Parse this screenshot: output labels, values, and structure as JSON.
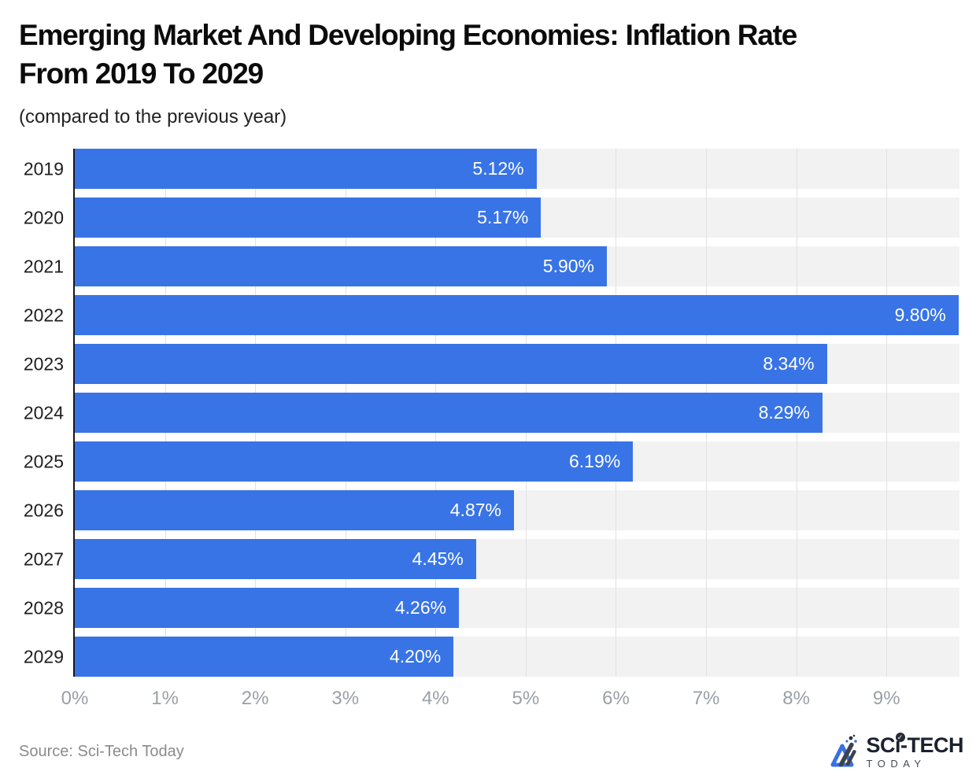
{
  "header": {
    "title_line1": "Emerging Market And Developing Economies: Inflation Rate",
    "title_line2": "From 2019 To 2029",
    "subtitle": "(compared to the previous year)"
  },
  "footer": {
    "source": "Source: Sci-Tech Today",
    "brand_top": "SCi-TECH",
    "brand_bottom": "TODAY"
  },
  "colors": {
    "bar": "#3874e6",
    "track": "#f2f2f2",
    "gridline": "#e1e1e1",
    "axis_line": "#17181a",
    "tick_label": "#9aa0a6",
    "year_label": "#1e1e1e",
    "value_label": "#ffffff",
    "brand_blue": "#3a70e2",
    "brand_dark": "#3c4350"
  },
  "chart_data": {
    "type": "bar",
    "orientation": "horizontal",
    "title": "Emerging Market And Developing Economies: Inflation Rate From 2019 To 2029",
    "subtitle": "(compared to the previous year)",
    "categories": [
      "2019",
      "2020",
      "2021",
      "2022",
      "2023",
      "2024",
      "2025",
      "2026",
      "2027",
      "2028",
      "2029"
    ],
    "values": [
      5.12,
      5.17,
      5.9,
      9.8,
      8.34,
      8.29,
      6.19,
      4.87,
      4.45,
      4.26,
      4.2
    ],
    "value_labels": [
      "5.12%",
      "5.17%",
      "5.90%",
      "9.80%",
      "8.34%",
      "8.29%",
      "6.19%",
      "4.87%",
      "4.45%",
      "4.26%",
      "4.20%"
    ],
    "x_ticks": [
      "0%",
      "1%",
      "2%",
      "3%",
      "4%",
      "5%",
      "6%",
      "7%",
      "8%",
      "9%"
    ],
    "x_tick_values": [
      0,
      1,
      2,
      3,
      4,
      5,
      6,
      7,
      8,
      9
    ],
    "xlim": [
      0,
      9.81
    ],
    "xlabel": "",
    "ylabel": "",
    "grid": true,
    "legend": false,
    "value_labels_inside_bar_right": true,
    "source": "Source: Sci-Tech Today"
  }
}
